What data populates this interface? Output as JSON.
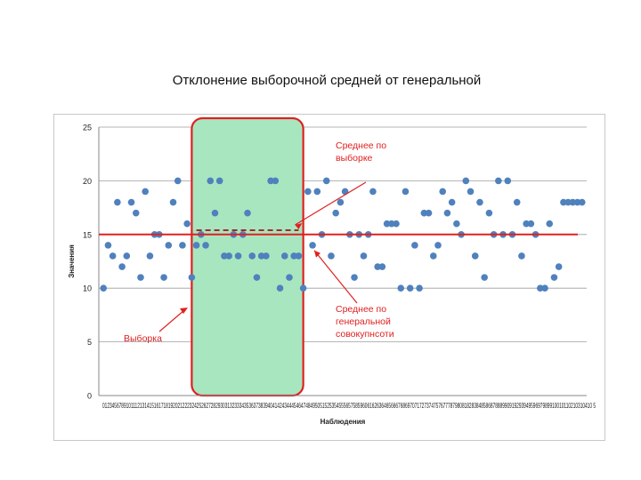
{
  "slide": {
    "title": "Отклонение выборочной средней от генеральной"
  },
  "chart_data": {
    "type": "scatter",
    "xlabel": "Наблюдения",
    "ylabel": "Значения",
    "ylim": [
      0,
      25
    ],
    "yticks": [
      0,
      5,
      10,
      15,
      20,
      25
    ],
    "xlim": [
      0,
      105
    ],
    "grid": true,
    "x_tick_labels_text": "012345678910111213141516171819202122232425262728293031323334353637383940414243444546474849505152535455565758596061626364656667686970717273747576777879808182838485868788899091929394959697989910010110210310410 5",
    "x": [
      1,
      2,
      3,
      4,
      5,
      6,
      7,
      8,
      9,
      10,
      11,
      12,
      13,
      14,
      15,
      16,
      17,
      18,
      19,
      20,
      21,
      22,
      23,
      24,
      25,
      26,
      27,
      28,
      29,
      30,
      31,
      32,
      33,
      34,
      35,
      36,
      37,
      38,
      39,
      40,
      41,
      42,
      43,
      44,
      45,
      46,
      47,
      48,
      49,
      50,
      51,
      52,
      53,
      54,
      55,
      56,
      57,
      58,
      59,
      60,
      61,
      62,
      63,
      64,
      65,
      66,
      67,
      68,
      69,
      70,
      71,
      72,
      73,
      74,
      75,
      76,
      77,
      78,
      79,
      80,
      81,
      82,
      83,
      84,
      85,
      86,
      87,
      88,
      89,
      90,
      91,
      92,
      93,
      94,
      95,
      96,
      97,
      98,
      99,
      100,
      101,
      102,
      103,
      104
    ],
    "y": [
      10,
      14,
      13,
      18,
      12,
      13,
      18,
      17,
      11,
      19,
      13,
      15,
      15,
      11,
      14,
      18,
      20,
      14,
      16,
      11,
      14,
      15,
      14,
      20,
      17,
      20,
      13,
      13,
      15,
      13,
      15,
      17,
      13,
      11,
      13,
      13,
      20,
      20,
      10,
      13,
      11,
      13,
      13,
      10,
      19,
      14,
      19,
      15,
      20,
      13,
      17,
      18,
      19,
      15,
      11,
      15,
      13,
      15,
      19,
      12,
      12,
      16,
      16,
      16,
      10,
      19,
      10,
      14,
      10,
      17,
      17,
      13,
      14,
      19,
      17,
      18,
      16,
      15,
      20,
      19,
      13,
      18,
      11,
      17,
      15,
      20,
      15,
      20,
      15,
      18,
      13,
      16,
      16,
      15,
      10,
      10,
      16,
      11,
      12,
      18,
      18,
      18,
      18,
      18
    ],
    "series_color": "#4f81bd",
    "annotations": {
      "population_mean": {
        "value": 15,
        "color": "#e02020",
        "label": "Среднее по генеральной совокупнсоти"
      },
      "sample_mean": {
        "value": 15.4,
        "x_range": [
          21,
          43
        ],
        "color": "#a52a2a",
        "label": "Среднее по выборке"
      },
      "sample_region": {
        "x_range": [
          20,
          44
        ],
        "fill": "#a8e6c0",
        "stroke": "#e02020",
        "label": "Выборка"
      }
    }
  }
}
